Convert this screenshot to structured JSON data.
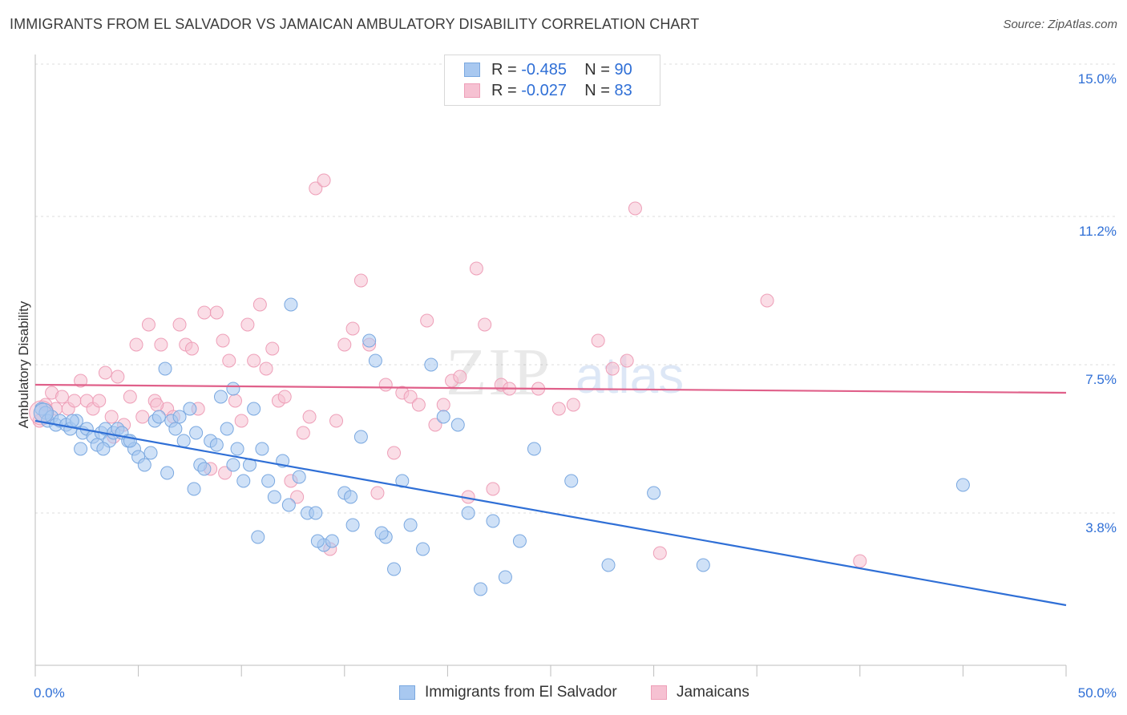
{
  "header": {
    "title": "IMMIGRANTS FROM EL SALVADOR VS JAMAICAN AMBULATORY DISABILITY CORRELATION CHART",
    "source": "Source: ZipAtlas.com"
  },
  "legend_stats": {
    "row1": {
      "r_label": "R =",
      "r_value": "-0.485",
      "n_label": "N =",
      "n_value": "90"
    },
    "row2": {
      "r_label": "R =",
      "r_value": "-0.027",
      "n_label": "N =",
      "n_value": "83"
    }
  },
  "watermark": {
    "zip": "ZIP",
    "atlas": "atlas"
  },
  "chart_data": {
    "type": "scatter",
    "xlabel": "",
    "ylabel": "Ambulatory Disability",
    "xlim": [
      0,
      50
    ],
    "ylim": [
      0,
      15.4
    ],
    "x_tick_labels": [
      "0.0%",
      "50.0%"
    ],
    "y_ticks": [
      3.8,
      7.5,
      11.2,
      15.0
    ],
    "y_tick_labels": [
      "3.8%",
      "7.5%",
      "11.2%",
      "15.0%"
    ],
    "grid": "horizontal dashed",
    "legend_position": "bottom-center",
    "colors": {
      "blue_fill": "#a8c8f0",
      "blue_stroke": "#7aa8e0",
      "blue_line": "#2f6fd6",
      "pink_fill": "#f6c1d2",
      "pink_stroke": "#ee9fb8",
      "pink_line": "#e0608a"
    },
    "series": [
      {
        "name": "Immigrants from El Salvador",
        "color": "#a8c8f0",
        "trend": {
          "x": [
            0,
            50
          ],
          "y": [
            6.1,
            1.5
          ]
        },
        "points": [
          [
            0.3,
            6.4
          ],
          [
            0.5,
            6.3
          ],
          [
            0.6,
            6.1
          ],
          [
            0.8,
            6.2
          ],
          [
            1.0,
            6.0
          ],
          [
            1.2,
            6.1
          ],
          [
            1.5,
            6.0
          ],
          [
            1.7,
            5.9
          ],
          [
            2.0,
            6.1
          ],
          [
            2.3,
            5.8
          ],
          [
            2.5,
            5.9
          ],
          [
            2.8,
            5.7
          ],
          [
            3.0,
            5.5
          ],
          [
            3.2,
            5.8
          ],
          [
            3.4,
            5.9
          ],
          [
            3.6,
            5.6
          ],
          [
            3.8,
            5.8
          ],
          [
            4.0,
            5.9
          ],
          [
            4.2,
            5.8
          ],
          [
            4.5,
            5.6
          ],
          [
            4.8,
            5.4
          ],
          [
            5.0,
            5.2
          ],
          [
            5.3,
            5.0
          ],
          [
            5.6,
            5.3
          ],
          [
            5.8,
            6.1
          ],
          [
            6.0,
            6.2
          ],
          [
            6.3,
            7.4
          ],
          [
            6.6,
            6.1
          ],
          [
            6.8,
            5.9
          ],
          [
            7.0,
            6.2
          ],
          [
            7.2,
            5.6
          ],
          [
            7.5,
            6.4
          ],
          [
            7.8,
            5.8
          ],
          [
            8.0,
            5.0
          ],
          [
            8.2,
            4.9
          ],
          [
            8.5,
            5.6
          ],
          [
            8.8,
            5.5
          ],
          [
            9.0,
            6.7
          ],
          [
            9.3,
            5.9
          ],
          [
            9.6,
            6.9
          ],
          [
            9.8,
            5.4
          ],
          [
            10.1,
            4.6
          ],
          [
            10.4,
            5.0
          ],
          [
            10.6,
            6.4
          ],
          [
            11.0,
            5.4
          ],
          [
            11.3,
            4.6
          ],
          [
            11.6,
            4.2
          ],
          [
            12.0,
            5.1
          ],
          [
            12.4,
            9.0
          ],
          [
            12.8,
            4.7
          ],
          [
            13.2,
            3.8
          ],
          [
            13.6,
            3.8
          ],
          [
            14.0,
            3.0
          ],
          [
            14.4,
            3.1
          ],
          [
            15.0,
            4.3
          ],
          [
            15.4,
            3.5
          ],
          [
            15.8,
            5.7
          ],
          [
            16.2,
            8.1
          ],
          [
            16.5,
            7.6
          ],
          [
            17.0,
            3.2
          ],
          [
            17.4,
            2.4
          ],
          [
            17.8,
            4.6
          ],
          [
            18.2,
            3.5
          ],
          [
            18.8,
            2.9
          ],
          [
            19.2,
            7.5
          ],
          [
            19.8,
            6.2
          ],
          [
            20.5,
            6.0
          ],
          [
            21.0,
            3.8
          ],
          [
            21.6,
            1.9
          ],
          [
            22.2,
            3.6
          ],
          [
            22.8,
            2.2
          ],
          [
            23.5,
            3.1
          ],
          [
            24.2,
            5.4
          ],
          [
            26.0,
            4.6
          ],
          [
            27.8,
            2.5
          ],
          [
            30.0,
            4.3
          ],
          [
            32.4,
            2.5
          ],
          [
            45.0,
            4.5
          ],
          [
            1.8,
            6.1
          ],
          [
            2.2,
            5.4
          ],
          [
            3.3,
            5.4
          ],
          [
            4.6,
            5.6
          ],
          [
            6.4,
            4.8
          ],
          [
            7.7,
            4.4
          ],
          [
            9.6,
            5.0
          ],
          [
            10.8,
            3.2
          ],
          [
            12.3,
            4.0
          ],
          [
            13.7,
            3.1
          ],
          [
            15.3,
            4.2
          ],
          [
            16.8,
            3.3
          ]
        ]
      },
      {
        "name": "Jamaicans",
        "color": "#f6c1d2",
        "trend": {
          "x": [
            0,
            50
          ],
          "y": [
            7.0,
            6.8
          ]
        },
        "points": [
          [
            0.2,
            6.1
          ],
          [
            0.5,
            6.5
          ],
          [
            0.8,
            6.8
          ],
          [
            1.0,
            6.4
          ],
          [
            1.3,
            6.7
          ],
          [
            1.6,
            6.4
          ],
          [
            1.9,
            6.6
          ],
          [
            2.2,
            7.1
          ],
          [
            2.5,
            6.6
          ],
          [
            2.8,
            6.4
          ],
          [
            3.1,
            6.6
          ],
          [
            3.4,
            7.3
          ],
          [
            3.7,
            6.2
          ],
          [
            4.0,
            7.2
          ],
          [
            4.3,
            6.0
          ],
          [
            4.6,
            6.7
          ],
          [
            4.9,
            8.0
          ],
          [
            5.2,
            6.2
          ],
          [
            5.5,
            8.5
          ],
          [
            5.8,
            6.6
          ],
          [
            6.1,
            8.0
          ],
          [
            6.4,
            6.4
          ],
          [
            6.7,
            6.2
          ],
          [
            7.0,
            8.5
          ],
          [
            7.3,
            8.0
          ],
          [
            7.6,
            7.9
          ],
          [
            7.9,
            6.4
          ],
          [
            8.2,
            8.8
          ],
          [
            8.5,
            4.9
          ],
          [
            8.8,
            8.8
          ],
          [
            9.1,
            8.1
          ],
          [
            9.4,
            7.6
          ],
          [
            9.7,
            6.6
          ],
          [
            10.0,
            6.1
          ],
          [
            10.3,
            8.5
          ],
          [
            10.6,
            7.6
          ],
          [
            10.9,
            9.0
          ],
          [
            11.2,
            7.4
          ],
          [
            11.5,
            7.9
          ],
          [
            11.8,
            6.6
          ],
          [
            12.1,
            6.7
          ],
          [
            12.4,
            4.6
          ],
          [
            12.7,
            4.2
          ],
          [
            13.0,
            5.8
          ],
          [
            13.3,
            6.2
          ],
          [
            13.6,
            11.9
          ],
          [
            14.0,
            12.1
          ],
          [
            14.3,
            2.9
          ],
          [
            14.6,
            6.1
          ],
          [
            15.0,
            8.0
          ],
          [
            15.4,
            8.4
          ],
          [
            15.8,
            9.6
          ],
          [
            16.2,
            8.0
          ],
          [
            16.6,
            4.3
          ],
          [
            17.0,
            7.0
          ],
          [
            17.4,
            5.3
          ],
          [
            17.8,
            6.8
          ],
          [
            18.2,
            6.7
          ],
          [
            18.6,
            6.5
          ],
          [
            19.0,
            8.6
          ],
          [
            19.4,
            6.0
          ],
          [
            19.8,
            6.5
          ],
          [
            20.2,
            7.1
          ],
          [
            20.6,
            7.2
          ],
          [
            21.0,
            4.2
          ],
          [
            21.4,
            9.9
          ],
          [
            21.8,
            8.5
          ],
          [
            22.2,
            4.4
          ],
          [
            22.6,
            7.0
          ],
          [
            23.0,
            6.9
          ],
          [
            24.4,
            6.9
          ],
          [
            25.4,
            6.4
          ],
          [
            26.1,
            6.5
          ],
          [
            27.3,
            8.1
          ],
          [
            28.0,
            7.4
          ],
          [
            28.7,
            7.6
          ],
          [
            29.1,
            11.4
          ],
          [
            30.3,
            2.8
          ],
          [
            35.5,
            9.1
          ],
          [
            40.0,
            2.6
          ],
          [
            3.8,
            5.7
          ],
          [
            5.9,
            6.5
          ],
          [
            9.2,
            4.8
          ]
        ]
      }
    ]
  }
}
